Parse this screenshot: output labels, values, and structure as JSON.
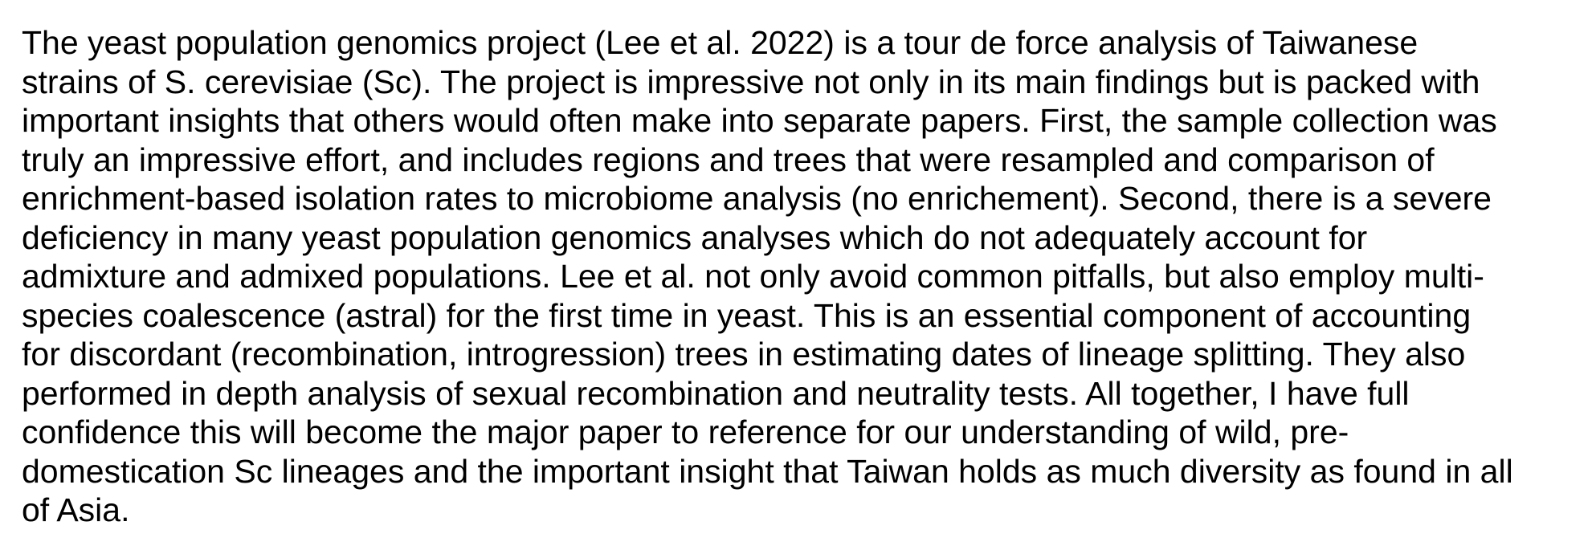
{
  "document": {
    "paragraph": "The yeast population genomics project (Lee et al. 2022) is a tour de force analysis of Taiwanese\nstrains of S. cerevisiae (Sc). The project is impressive not only in its main findings but is packed with\nimportant insights that others would often make into separate papers. First, the sample collection was\ntruly an impressive effort, and includes regions and trees that were resampled and comparison of\nenrichment-based isolation rates to microbiome analysis (no enrichement). Second, there is a severe\ndeficiency in many yeast population genomics analyses which do not adequately account for\nadmixture and admixed populations. Lee et al. not only avoid common pitfalls, but also employ multi-\nspecies coalescence (astral) for the first time in yeast. This is an essential component of accounting\nfor discordant (recombination, introgression) trees in estimating dates of lineage splitting. They also\nperformed in depth analysis of sexual recombination and neutrality tests. All together, I have full\nconfidence this will become the major paper to reference for our understanding of wild, pre-\ndomestication Sc lineages and the important insight that Taiwan holds as much diversity as found in all\nof Asia."
  }
}
